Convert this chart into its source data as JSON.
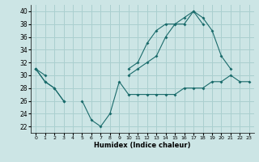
{
  "xlabel": "Humidex (Indice chaleur)",
  "bg_color": "#cce5e5",
  "grid_color": "#aacfcf",
  "line_color": "#1a6b6b",
  "xlim": [
    -0.5,
    23.5
  ],
  "ylim": [
    21,
    41
  ],
  "yticks": [
    22,
    24,
    26,
    28,
    30,
    32,
    34,
    36,
    38,
    40
  ],
  "xticks": [
    0,
    1,
    2,
    3,
    4,
    5,
    6,
    7,
    8,
    9,
    10,
    11,
    12,
    13,
    14,
    15,
    16,
    17,
    18,
    19,
    20,
    21,
    22,
    23
  ],
  "line1_y": [
    31,
    29,
    28,
    26,
    null,
    null,
    null,
    null,
    null,
    null,
    31,
    32,
    35,
    37,
    38,
    38,
    39,
    40,
    39,
    37,
    33,
    31,
    null,
    null
  ],
  "line2_y": [
    31,
    30,
    null,
    null,
    null,
    null,
    null,
    null,
    null,
    null,
    30,
    31,
    32,
    33,
    36,
    38,
    38,
    40,
    38,
    null,
    null,
    null,
    null,
    null
  ],
  "line3_y": [
    31,
    29,
    28,
    26,
    null,
    26,
    23,
    22,
    24,
    29,
    27,
    27,
    27,
    27,
    27,
    27,
    28,
    28,
    28,
    29,
    29,
    30,
    29,
    29
  ]
}
